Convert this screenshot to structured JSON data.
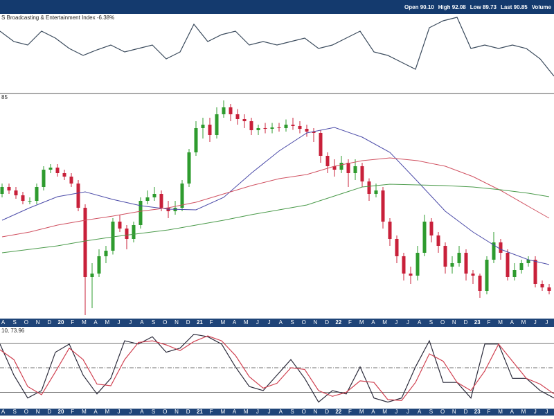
{
  "header": {
    "quote": [
      "Open 90.10",
      "High 92.08",
      "Low 89.73",
      "Last 90.85",
      "Volume"
    ]
  },
  "chart_data": [
    {
      "type": "line",
      "title": "S Broadcasting & Entertainment Index -6.38%",
      "color": "#3a4a5c",
      "ylim": [
        0,
        115
      ],
      "values": [
        90,
        75,
        70,
        90,
        80,
        65,
        55,
        63,
        70,
        60,
        65,
        70,
        50,
        60,
        100,
        75,
        85,
        90,
        70,
        75,
        70,
        75,
        80,
        65,
        70,
        80,
        90,
        60,
        55,
        45,
        35,
        95,
        105,
        110,
        65,
        70,
        65,
        70,
        65,
        50,
        25
      ]
    },
    {
      "type": "candlestick",
      "title": "85",
      "ylim": [
        74,
        204
      ],
      "up_color": "#2e9b2e",
      "down_color": "#c8203a",
      "x_tick_labels": [
        "A",
        "S",
        "O",
        "N",
        "D",
        "20",
        "F",
        "M",
        "A",
        "M",
        "J",
        "J",
        "A",
        "S",
        "O",
        "N",
        "D",
        "21",
        "F",
        "M",
        "A",
        "M",
        "J",
        "J",
        "A",
        "S",
        "O",
        "N",
        "D",
        "22",
        "F",
        "M",
        "A",
        "M",
        "J",
        "J",
        "A",
        "S",
        "O",
        "N",
        "D",
        "23",
        "F",
        "M",
        "A",
        "M",
        "J",
        "J"
      ],
      "open": [
        146,
        150,
        148,
        145.2,
        142,
        142,
        150,
        160,
        161.2,
        158,
        156,
        152,
        138,
        98,
        100,
        110,
        113.2,
        130,
        126,
        120,
        128,
        142,
        144,
        146,
        138,
        136,
        138,
        152,
        170,
        184,
        186,
        180,
        192,
        196,
        192,
        189.2,
        188,
        182.8,
        184,
        183.6,
        184.4,
        184,
        186,
        185.2,
        183.6,
        182,
        181.2,
        168,
        162,
        160,
        164,
        158,
        162,
        153.2,
        146,
        148,
        130,
        120,
        110,
        100,
        98.8,
        112,
        130,
        122,
        116,
        104,
        106,
        112,
        100,
        98.8,
        90,
        108,
        118,
        112,
        98,
        102,
        106,
        108,
        94,
        92
      ],
      "high": [
        152,
        152,
        150,
        147.2,
        144,
        152,
        162,
        163.2,
        163.2,
        160,
        158,
        154,
        140,
        106,
        114,
        116,
        132,
        134,
        128,
        130,
        144,
        148,
        150,
        148,
        142,
        142,
        154,
        172,
        188,
        190,
        190,
        196,
        200,
        198,
        195,
        192,
        190,
        186,
        187,
        187,
        187,
        189,
        190,
        188,
        186,
        184,
        183,
        170,
        166,
        168,
        166,
        166,
        164,
        155,
        152,
        150,
        132,
        122,
        112,
        104,
        116,
        134,
        132,
        124,
        118,
        110,
        116,
        114,
        102,
        100,
        110,
        124,
        120,
        114,
        106,
        108,
        110,
        110,
        96,
        94
      ],
      "low": [
        144,
        146,
        143.2,
        140,
        140,
        140,
        148,
        158,
        156,
        154,
        150,
        136,
        76,
        80,
        98,
        106,
        111,
        124,
        114,
        118,
        126,
        140,
        142,
        136,
        132,
        134,
        136,
        150,
        168,
        178,
        176,
        178,
        190,
        188,
        186,
        184,
        180,
        180,
        181,
        181,
        182,
        182,
        183,
        181,
        179,
        176,
        164,
        158,
        156,
        158,
        150,
        154,
        150,
        142,
        144,
        126,
        116,
        106,
        96,
        94,
        96,
        110,
        118,
        112,
        100,
        100,
        104,
        96,
        94,
        86,
        88,
        106,
        108,
        96,
        96,
        100,
        104,
        92,
        90,
        88
      ],
      "close": [
        150,
        148,
        145.2,
        142,
        142,
        150,
        160,
        161.2,
        158,
        156,
        152,
        138,
        98,
        100,
        110,
        113.2,
        130,
        126,
        120,
        128,
        142,
        144,
        146,
        138,
        136,
        138,
        152,
        170,
        184,
        186,
        180,
        192,
        196,
        192,
        189.2,
        188,
        182.8,
        184,
        183.6,
        184.4,
        184,
        186,
        185.2,
        183.6,
        182,
        181.2,
        168,
        162,
        160,
        164,
        158,
        162,
        153.2,
        146,
        148,
        130,
        120,
        110,
        100,
        98.8,
        112,
        130,
        122,
        116,
        104,
        106,
        112,
        100,
        98.8,
        90,
        108,
        118,
        112,
        98,
        102,
        106,
        108,
        94,
        92,
        90
      ],
      "series": [
        {
          "color": "#4a4aa8",
          "x": [
            0,
            4,
            8,
            12,
            16,
            20,
            24,
            28,
            32,
            36,
            40,
            44,
            48,
            52,
            56,
            60,
            64,
            68,
            72,
            76,
            79
          ],
          "values": [
            130.8,
            138,
            144.4,
            147.2,
            142.8,
            139.2,
            137.2,
            136.8,
            144,
            158,
            170.8,
            181.2,
            184.4,
            178.8,
            170,
            153.2,
            136,
            124,
            114,
            108,
            105.2
          ]
        },
        {
          "color": "#d05060",
          "x": [
            0,
            4,
            8,
            12,
            16,
            20,
            24,
            28,
            32,
            36,
            40,
            44,
            48,
            52,
            56,
            60,
            64,
            68,
            72,
            76,
            79
          ],
          "values": [
            121.2,
            124,
            128,
            130.8,
            133.2,
            136,
            138,
            141.2,
            146,
            150.8,
            154.8,
            157.2,
            162,
            165.2,
            166.8,
            165.2,
            162,
            156,
            148,
            138.8,
            132
          ]
        },
        {
          "color": "#4a9a4a",
          "x": [
            0,
            4,
            8,
            12,
            16,
            20,
            24,
            28,
            32,
            36,
            40,
            44,
            48,
            52,
            56,
            60,
            64,
            68,
            72,
            76,
            79
          ],
          "values": [
            112,
            114,
            116,
            118.8,
            121.2,
            123.2,
            125.2,
            128,
            130.8,
            134,
            136.8,
            139.6,
            144.8,
            150,
            151.6,
            151.2,
            150.8,
            150,
            148.4,
            146.4,
            144.4
          ]
        }
      ]
    },
    {
      "type": "line",
      "title": "10, 73.96",
      "ylim": [
        0,
        100
      ],
      "reference_lines": [
        80,
        50,
        20
      ],
      "series": [
        {
          "color": "#2a2a3a",
          "values": [
            79,
            41,
            13,
            22,
            69,
            79,
            41,
            18,
            37,
            83,
            79,
            88,
            69,
            74,
            91,
            88,
            79,
            51,
            27,
            22,
            41,
            60,
            37,
            8,
            22,
            18,
            51,
            13,
            8,
            13,
            51,
            83,
            32,
            32,
            13,
            79,
            79,
            37,
            37,
            22,
            13
          ]
        },
        {
          "color": "#d04050",
          "values": [
            72,
            60,
            27,
            17,
            45,
            74,
            60,
            30,
            28,
            60,
            81,
            83,
            78,
            71,
            82,
            89,
            83,
            65,
            39,
            25,
            31,
            50,
            48,
            22,
            15,
            20,
            34,
            32,
            11,
            10,
            32,
            67,
            58,
            32,
            22,
            46,
            79,
            58,
            37,
            30,
            18
          ]
        }
      ]
    }
  ]
}
